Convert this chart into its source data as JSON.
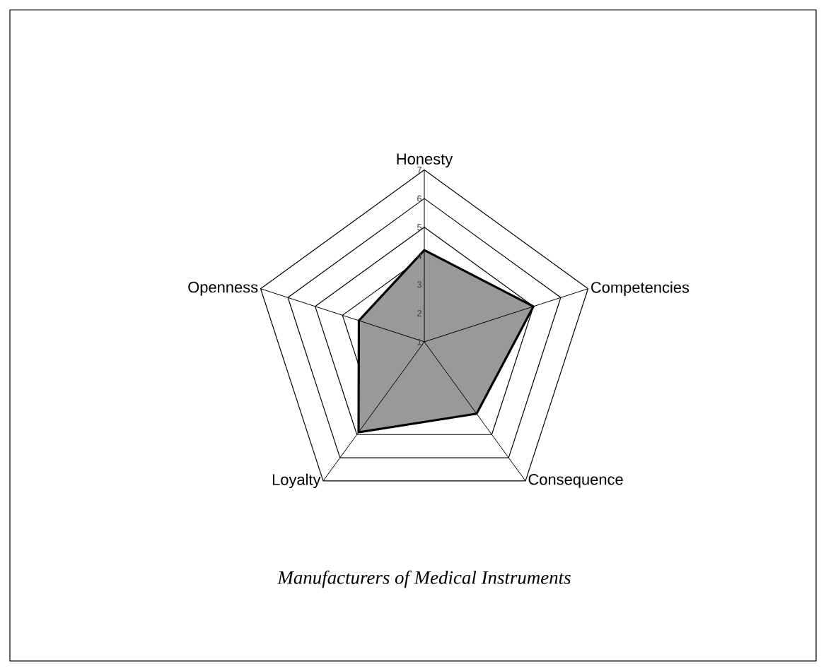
{
  "chart_data": {
    "type": "radar",
    "title": "Manufacturers of Medical Instruments",
    "categories": [
      "Honesty",
      "Competencies",
      "Consequence",
      "Loyalty",
      "Openness"
    ],
    "series": [
      {
        "color": "#999999",
        "values": [
          4.2,
          5.0,
          4.1,
          4.9,
          3.4
        ]
      }
    ],
    "ylim": [
      1,
      7
    ],
    "yticks": [
      1,
      2,
      3,
      4,
      5,
      6,
      7
    ],
    "grid": true
  }
}
